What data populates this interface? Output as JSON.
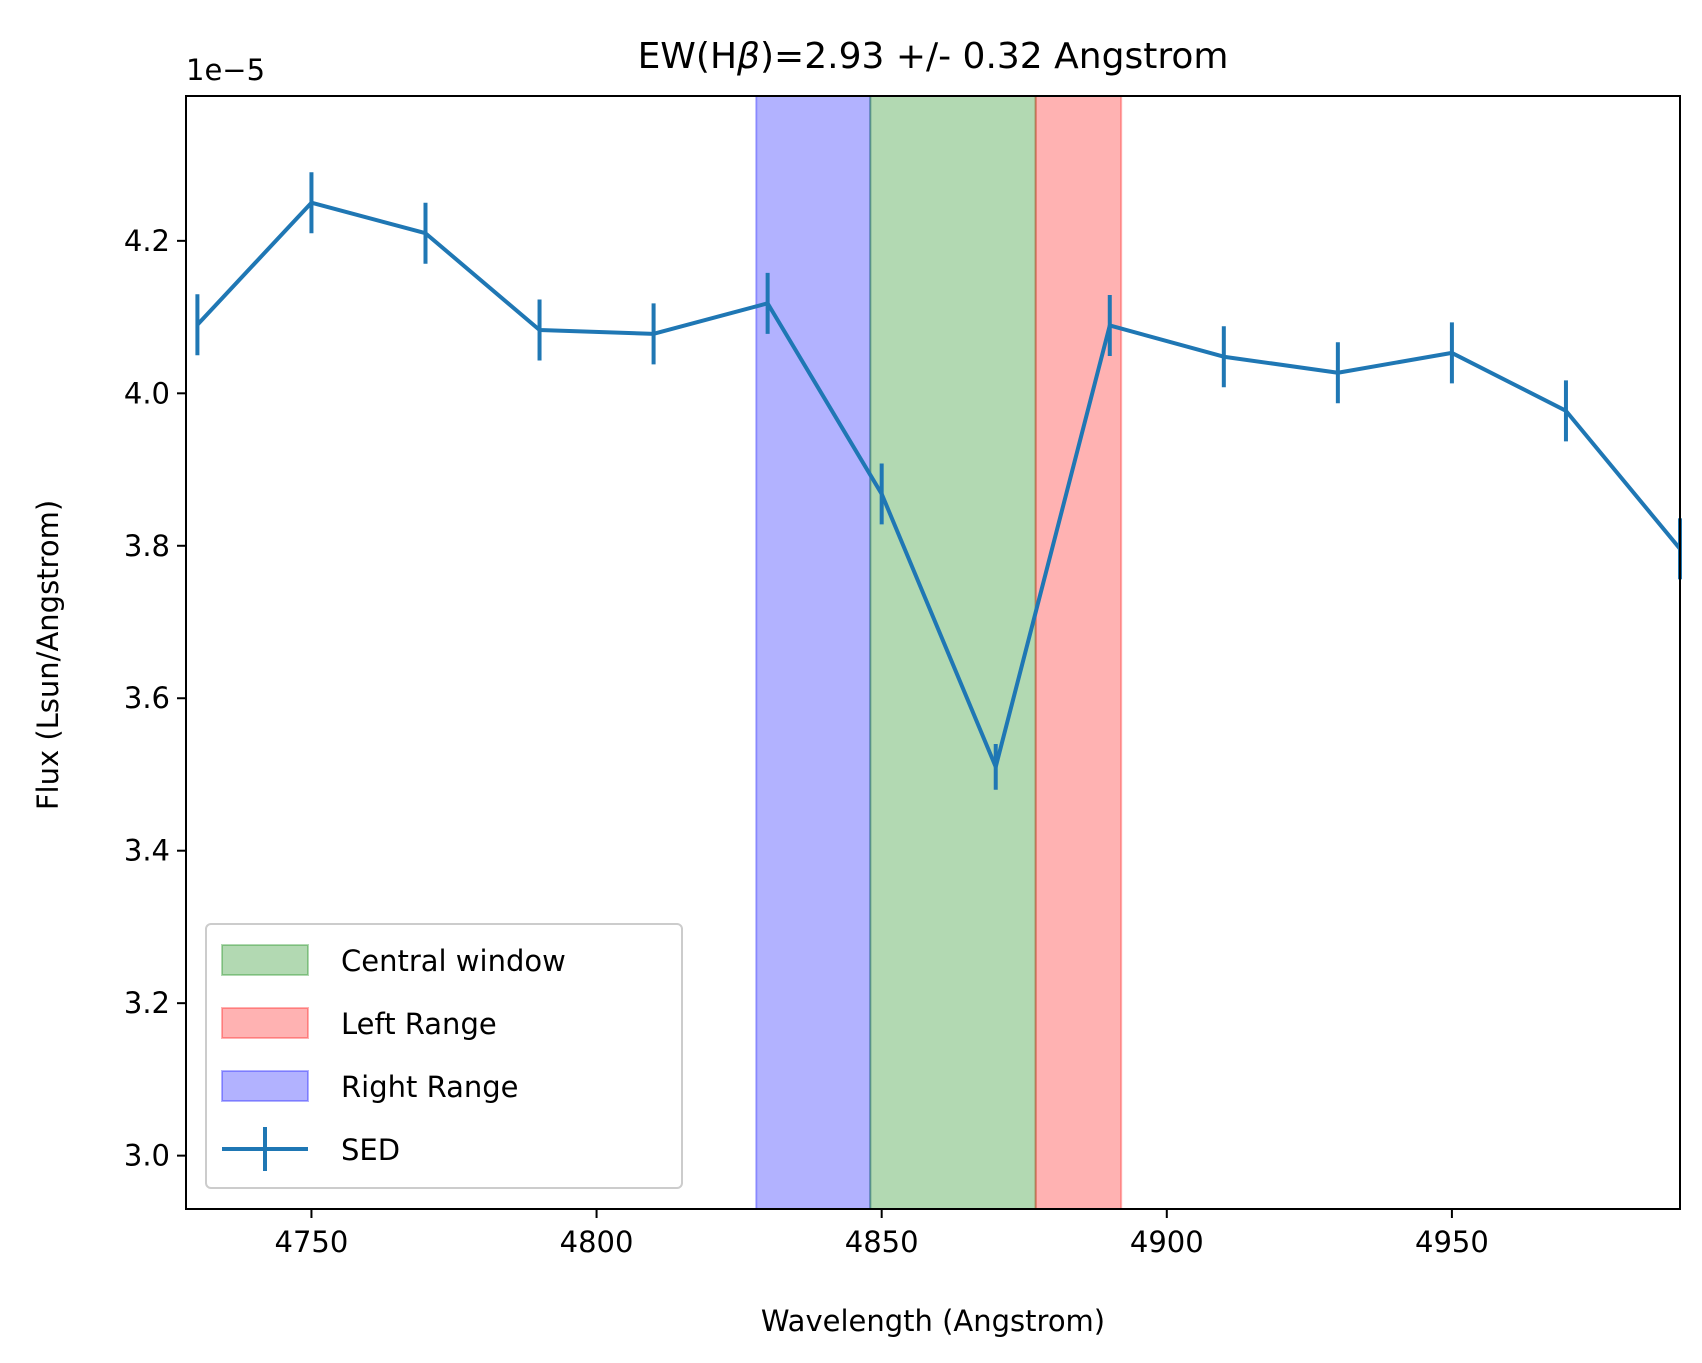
{
  "chart_data": {
    "type": "line",
    "title_prefix": "EW(H",
    "title_symbol": "β",
    "title_suffix": ")=2.93 +/- 0.32 Angstrom",
    "xlabel": "Wavelength (Angstrom)",
    "ylabel": "Flux (Lsun/Angstrom)",
    "y_offset_label": "1e−5",
    "xlim": [
      4728,
      4990
    ],
    "ylim": [
      2.93,
      4.39
    ],
    "x_ticks": [
      4750,
      4800,
      4850,
      4900,
      4950
    ],
    "y_ticks": [
      3.0,
      3.2,
      3.4,
      3.6,
      3.8,
      4.0,
      4.2
    ],
    "y_tick_labels": [
      "3.0",
      "3.2",
      "3.4",
      "3.6",
      "3.8",
      "4.0",
      "4.2"
    ],
    "grid": false,
    "legend_position": "lower-left",
    "bands": [
      {
        "name": "Right Range",
        "x0": 4828,
        "x1": 4848,
        "color": "#0000ff",
        "alpha": 0.3
      },
      {
        "name": "Central window",
        "x0": 4848,
        "x1": 4877,
        "color": "#008000",
        "alpha": 0.3
      },
      {
        "name": "Left Range",
        "x0": 4877,
        "x1": 4892,
        "color": "#ff0000",
        "alpha": 0.3
      }
    ],
    "series": [
      {
        "name": "SED",
        "color": "#1f77b4",
        "x": [
          4730,
          4750,
          4770,
          4790,
          4810,
          4830,
          4850,
          4870,
          4890,
          4910,
          4930,
          4950,
          4970,
          4990
        ],
        "y": [
          4.09,
          4.25,
          4.21,
          4.083,
          4.078,
          4.118,
          3.868,
          3.51,
          4.089,
          4.048,
          4.027,
          4.053,
          3.977,
          3.796
        ],
        "yerr": [
          0.04,
          0.04,
          0.04,
          0.04,
          0.04,
          0.04,
          0.04,
          0.03,
          0.04,
          0.04,
          0.04,
          0.04,
          0.04,
          0.04
        ]
      }
    ],
    "legend": [
      "Central window",
      "Left Range",
      "Right Range",
      "SED"
    ]
  }
}
